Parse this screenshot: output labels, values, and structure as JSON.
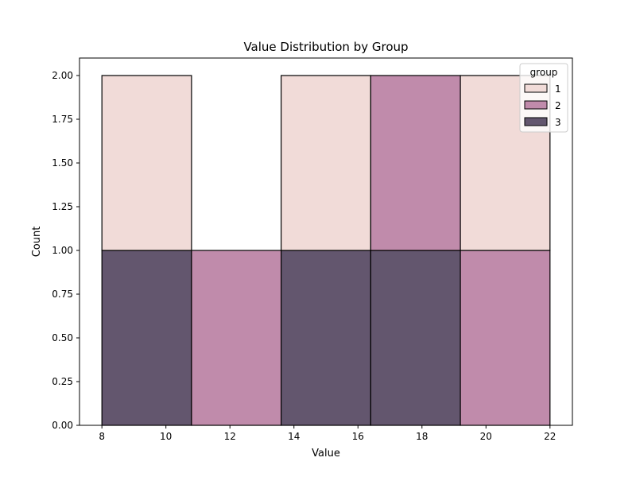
{
  "chart_data": {
    "type": "bar",
    "subtype": "stacked-histogram",
    "title": "Value Distribution by Group",
    "xlabel": "Value",
    "ylabel": "Count",
    "xlim": [
      7.3,
      22.7
    ],
    "ylim": [
      0,
      2.1
    ],
    "xticks": [
      "8",
      "10",
      "12",
      "14",
      "16",
      "18",
      "20",
      "22"
    ],
    "xtick_values": [
      8,
      10,
      12,
      14,
      16,
      18,
      20,
      22
    ],
    "yticks": [
      "0.00",
      "0.25",
      "0.50",
      "0.75",
      "1.00",
      "1.25",
      "1.50",
      "1.75",
      "2.00"
    ],
    "ytick_values": [
      0,
      0.25,
      0.5,
      0.75,
      1.0,
      1.25,
      1.5,
      1.75,
      2.0
    ],
    "bin_edges": [
      8,
      10.8,
      13.6,
      16.4,
      19.2,
      22
    ],
    "grid": false,
    "legend": {
      "title": "group",
      "placement": "top-right"
    },
    "series": [
      {
        "name": "1",
        "color": "#f1dbd8",
        "values": [
          1,
          0,
          1,
          0,
          1
        ]
      },
      {
        "name": "2",
        "color": "#c08bab",
        "values": [
          0,
          1,
          0,
          1,
          1
        ]
      },
      {
        "name": "3",
        "color": "#63566e",
        "values": [
          1,
          0,
          1,
          1,
          0
        ]
      }
    ],
    "stack_order_bottom_to_top": [
      "3",
      "2",
      "1"
    ]
  }
}
